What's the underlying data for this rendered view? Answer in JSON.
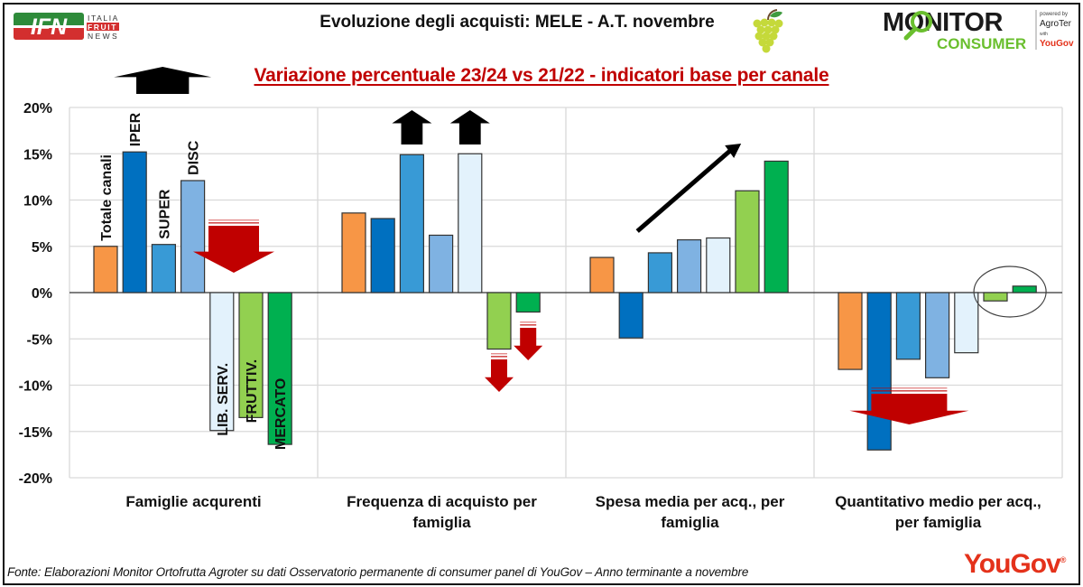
{
  "header": {
    "title": "Evoluzione degli acquisti: MELE - A.T. novembre",
    "subtitle": "Variazione percentuale 23/24 vs 21/22 - indicatori base per canale",
    "logo_left": {
      "main": "IFN",
      "line1": "ITALIA",
      "line2": "FRUIT",
      "line3": "NEWS"
    },
    "logo_right": {
      "main": "MONITOR",
      "sub": "CONSUMER",
      "powered": "powered by",
      "partner1": "AgroTer",
      "with": "with",
      "partner2": "YouGov"
    }
  },
  "footer": {
    "source": "Fonte: Elaborazioni Monitor Ortofrutta Agroter su dati Osservatorio permanente di consumer panel di YouGov  – Anno terminante a novembre",
    "brand": "YouGov",
    "brand_mark": "®"
  },
  "colors": {
    "title_red": "#c00000",
    "arrow_red": "#c00000",
    "arrow_black": "#000000",
    "grid": "#d9d9d9"
  },
  "chart_data": {
    "type": "bar",
    "title": "Variazione percentuale 23/24 vs 21/22 - indicatori base per canale",
    "xlabel": "",
    "ylabel": "",
    "ylim": [
      -20,
      20
    ],
    "yticks": [
      20,
      15,
      10,
      5,
      0,
      -5,
      -10,
      -15,
      -20
    ],
    "ytick_labels": [
      "20%",
      "15%",
      "10%",
      "5%",
      "0%",
      "-5%",
      "-10%",
      "-15%",
      "-20%"
    ],
    "grid": true,
    "categories": [
      [
        "Famiglie acqurenti"
      ],
      [
        "Frequenza di acquisto per",
        "famiglia"
      ],
      [
        "Spesa media per acq., per",
        "famiglia"
      ],
      [
        "Quantitativo medio per acq.,",
        "per famiglia"
      ]
    ],
    "series": [
      {
        "name": "Totale canali",
        "color": "#f79646",
        "values": [
          5.0,
          8.6,
          3.8,
          -8.3
        ]
      },
      {
        "name": "IPER",
        "color": "#0070c0",
        "values": [
          15.2,
          8.0,
          -4.9,
          -17.0
        ]
      },
      {
        "name": "SUPER",
        "color": "#389ad6",
        "values": [
          5.2,
          14.9,
          4.3,
          -7.2
        ]
      },
      {
        "name": "DISC",
        "color": "#7fb2e2",
        "values": [
          12.1,
          6.2,
          5.7,
          -9.2
        ]
      },
      {
        "name": "LIB. SERV.",
        "color": "#e3f2fc",
        "values": [
          -14.9,
          15.0,
          5.9,
          -6.5
        ]
      },
      {
        "name": "FRUTTIV.",
        "color": "#92d050",
        "values": [
          -13.5,
          -6.1,
          11.0,
          -0.9
        ]
      },
      {
        "name": "MERCATO",
        "color": "#00b050",
        "values": [
          -16.4,
          -2.1,
          14.2,
          0.7
        ]
      }
    ],
    "annotations": [
      {
        "type": "arrow-up",
        "color": "#000000",
        "group": 0,
        "near_series": "IPER"
      },
      {
        "type": "arrow-down",
        "color": "#c00000",
        "group": 0,
        "near_series": "FRUTTIV."
      },
      {
        "type": "arrow-up",
        "color": "#000000",
        "group": 1,
        "near_series": "SUPER"
      },
      {
        "type": "arrow-up",
        "color": "#000000",
        "group": 1,
        "near_series": "LIB. SERV."
      },
      {
        "type": "arrow-down",
        "color": "#c00000",
        "group": 1,
        "near_series": "FRUTTIV."
      },
      {
        "type": "arrow-down",
        "color": "#c00000",
        "group": 1,
        "near_series": "MERCATO"
      },
      {
        "type": "trend-arrow",
        "color": "#000000",
        "group": 2
      },
      {
        "type": "arrow-down",
        "color": "#c00000",
        "group": 3,
        "near_series": "SUPER"
      },
      {
        "type": "ellipse-highlight",
        "color": "#404040",
        "group": 3,
        "near_series": [
          "FRUTTIV.",
          "MERCATO"
        ]
      }
    ]
  }
}
